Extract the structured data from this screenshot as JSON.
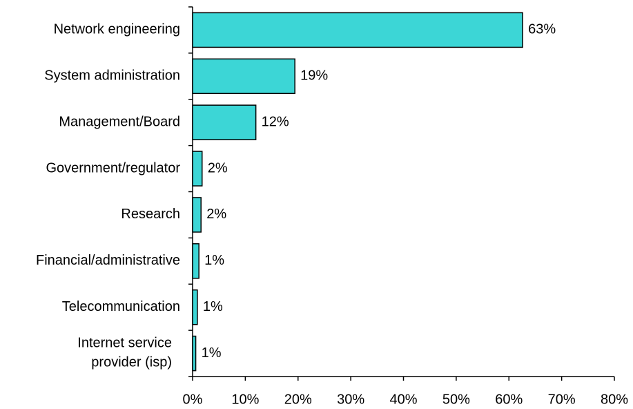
{
  "chart_data": {
    "type": "bar",
    "orientation": "horizontal",
    "categories": [
      "Network engineering",
      "System administration",
      "Management/Board",
      "Government/regulator",
      "Research",
      "Financial/administrative",
      "Telecommunication",
      "Internet service provider (isp)"
    ],
    "values": [
      62.6,
      19.4,
      12.0,
      1.8,
      1.6,
      1.2,
      0.9,
      0.6
    ],
    "value_labels": [
      "63%",
      "19%",
      "12%",
      "2%",
      "2%",
      "1%",
      "1%",
      "1%"
    ],
    "color": "#3cd6d6",
    "xlim": [
      0,
      80
    ],
    "xticks": [
      {
        "value": 0,
        "label": "0%"
      },
      {
        "value": 10,
        "label": "10%"
      },
      {
        "value": 20,
        "label": "20%"
      },
      {
        "value": 30,
        "label": "30%"
      },
      {
        "value": 40,
        "label": "40%"
      },
      {
        "value": 50,
        "label": "50%"
      },
      {
        "value": 60,
        "label": "60%"
      },
      {
        "value": 70,
        "label": "70%"
      },
      {
        "value": 80,
        "label": "80%"
      }
    ],
    "grid": false
  }
}
